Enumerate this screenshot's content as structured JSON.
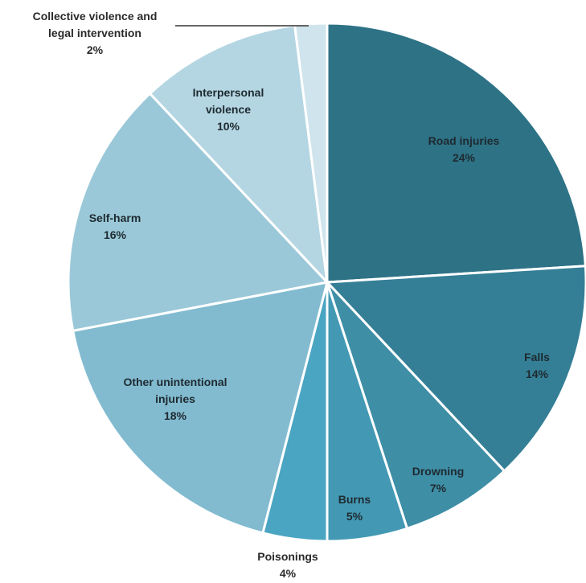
{
  "chart_data": {
    "type": "pie",
    "title": "",
    "slices": [
      {
        "name_lines": [
          "Road injuries"
        ],
        "pct_label": "24%",
        "value": 24,
        "color": "#2e7286"
      },
      {
        "name_lines": [
          "Falls"
        ],
        "pct_label": "14%",
        "value": 14,
        "color": "#347f96"
      },
      {
        "name_lines": [
          "Drowning"
        ],
        "pct_label": "7%",
        "value": 7,
        "color": "#3e8ea6"
      },
      {
        "name_lines": [
          "Burns"
        ],
        "pct_label": "5%",
        "value": 5,
        "color": "#4399b4"
      },
      {
        "name_lines": [
          "Poisonings"
        ],
        "pct_label": "4%",
        "value": 4,
        "color": "#4aa5c2"
      },
      {
        "name_lines": [
          "Other unintentional",
          "injuries"
        ],
        "pct_label": "18%",
        "value": 18,
        "color": "#82bbd0"
      },
      {
        "name_lines": [
          "Self-harm"
        ],
        "pct_label": "16%",
        "value": 16,
        "color": "#9ac8d8"
      },
      {
        "name_lines": [
          "Interpersonal",
          "violence"
        ],
        "pct_label": "10%",
        "value": 10,
        "color": "#b4d6e2"
      },
      {
        "name_lines": [
          "Collective violence and",
          "legal intervention"
        ],
        "pct_label": "2%",
        "value": 2,
        "color": "#cfe4ec"
      }
    ]
  }
}
